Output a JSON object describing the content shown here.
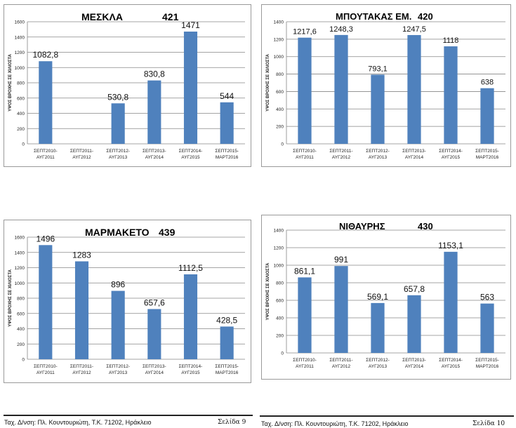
{
  "chart_data": [
    {
      "type": "bar",
      "title": "ΜΕΣΚΛΑ",
      "station_code": "421",
      "ylabel": "ΥΨΟΣ ΒΡΟΧΗΣ ΣΕ ΧΙΛΙΟΣΤΑ",
      "ylim": [
        0,
        1600
      ],
      "ystep": 200,
      "categories": [
        [
          "ΣΕΠΤ2010-",
          "ΑΥΓ2011"
        ],
        [
          "ΣΕΠΤ2011-",
          "ΑΥΓ2012"
        ],
        [
          "ΣΕΠΤ2012-",
          "ΑΥΓ2013"
        ],
        [
          "ΣΕΠΤ2013-",
          "ΑΥΓ2014"
        ],
        [
          "ΣΕΠΤ2014-",
          "ΑΥΓ2015"
        ],
        [
          "ΣΕΠΤ2015-",
          "ΜΑΡΤ2016"
        ]
      ],
      "values": [
        1082.8,
        null,
        530.8,
        830.8,
        1471,
        544
      ],
      "labels": [
        "1082,8",
        "",
        "530,8",
        "830,8",
        "1471",
        "544"
      ]
    },
    {
      "type": "bar",
      "title": "ΜΠΟΥΤΑΚΑΣ ΕΜ.",
      "station_code": "420",
      "ylabel": "ΥΨΟΣ ΒΡΟΧΗΣ ΣΕ ΧΙΛΙΟΣΤΑ",
      "ylim": [
        0,
        1400
      ],
      "ystep": 200,
      "categories": [
        [
          "ΣΕΠΤ2010-",
          "ΑΥΓ2011"
        ],
        [
          "ΣΕΠΤ2011-",
          "ΑΥΓ2012"
        ],
        [
          "ΣΕΠΤ2012-",
          "ΑΥΓ2013"
        ],
        [
          "ΣΕΠΤ2013-",
          "ΑΥΓ2014"
        ],
        [
          "ΣΕΠΤ2014-",
          "ΑΥΓ2015"
        ],
        [
          "ΣΕΠΤ2015-",
          "ΜΑΡΤ2016"
        ]
      ],
      "values": [
        1217.6,
        1248.3,
        793.1,
        1247.5,
        1118,
        638
      ],
      "labels": [
        "1217,6",
        "1248,3",
        "793,1",
        "1247,5",
        "1118",
        "638"
      ]
    },
    {
      "type": "bar",
      "title": "ΜΑΡΜΑΚΕΤΟ",
      "station_code": "439",
      "ylabel": "ΥΨΟΣ ΒΡΟΧΗΣ ΣΕ ΧΙΛΙΟΣΤΑ",
      "ylim": [
        0,
        1600
      ],
      "ystep": 200,
      "categories": [
        [
          "ΣΕΠΤ2010-",
          "ΑΥΓ2011"
        ],
        [
          "ΣΕΠΤ2011-",
          "ΑΥΓ2012"
        ],
        [
          "ΣΕΠΤ2012-",
          "ΑΥΓ2013"
        ],
        [
          "ΣΕΠΤ2013-",
          "ΑΥΓ2014"
        ],
        [
          "ΣΕΠΤ2014-",
          "ΑΥΓ2015"
        ],
        [
          "ΣΕΠΤ2015-",
          "ΜΑΡΤ2016"
        ]
      ],
      "values": [
        1496,
        1283,
        896,
        657.6,
        1112.5,
        428.5
      ],
      "labels": [
        "1496",
        "1283",
        "896",
        "657,6",
        "1112,5",
        "428,5"
      ]
    },
    {
      "type": "bar",
      "title": "ΝΙΘΑΥΡΗΣ",
      "station_code": "430",
      "ylabel": "ΥΨΟΣ ΒΡΟΧΗΣ ΣΕ ΧΙΛΙΟΣΤΑ",
      "ylim": [
        0,
        1400
      ],
      "ystep": 200,
      "categories": [
        [
          "ΣΕΠΤ2010-",
          "ΑΥΓ2011"
        ],
        [
          "ΣΕΠΤ2011-",
          "ΑΥΓ2012"
        ],
        [
          "ΣΕΠΤ2012-",
          "ΑΥΓ2013"
        ],
        [
          "ΣΕΠΤ2013-",
          "ΑΥΓ2014"
        ],
        [
          "ΣΕΠΤ2014-",
          "ΑΥΓ2015"
        ],
        [
          "ΣΕΠΤ2015-",
          "ΜΑΡΤ2016"
        ]
      ],
      "values": [
        861.1,
        991,
        569.1,
        657.8,
        1153.1,
        563
      ],
      "labels": [
        "861,1",
        "991",
        "569,1",
        "657,8",
        "1153,1",
        "563"
      ]
    }
  ],
  "colors": {
    "bar": "#4f81bd",
    "grid": "#868686"
  },
  "footer": {
    "left_address": "Ταχ. Δ/νση: Πλ. Κουντουριώτη, Τ.Κ. 71202, Ηράκλειο",
    "left_page": "Σελίδα 9",
    "right_address": "Ταχ. Δ/νση: Πλ. Κουντουριώτη, Τ.Κ. 71202, Ηράκλειο",
    "right_page": "Σελίδα 10"
  }
}
